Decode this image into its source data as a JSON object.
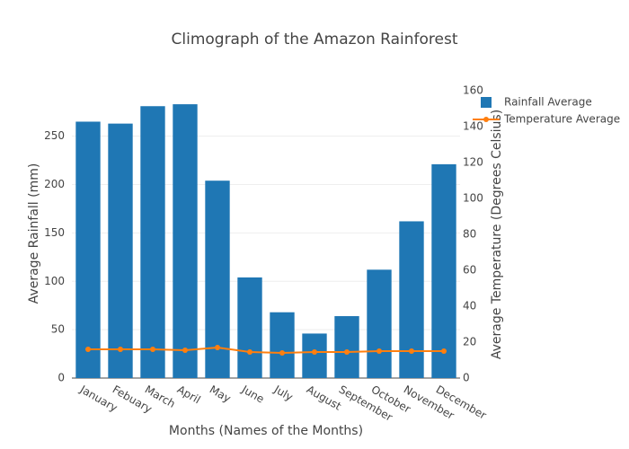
{
  "chart_data": {
    "type": "combo",
    "title": "Climograph of the Amazon Rainforest",
    "x_label": "Months (Names of the Months)",
    "y_label": "Average Rainfall (mm)",
    "y2_label": "Average Temperature (Degrees Celsius)",
    "categories": [
      "January",
      "Febuary",
      "March",
      "April",
      "May",
      "June",
      "July",
      "August",
      "September",
      "October",
      "November",
      "December"
    ],
    "series": [
      {
        "name": "Rainfall Average",
        "type": "bar",
        "color": "#1f77b4",
        "values": [
          265,
          263,
          281,
          283,
          204,
          104,
          68,
          46,
          64,
          112,
          162,
          221
        ]
      },
      {
        "name": "Temperature Average",
        "type": "line",
        "axis": "y2",
        "color": "#ff7f0e",
        "values": [
          16,
          16,
          16,
          15.5,
          17,
          14.5,
          14,
          14.5,
          14.5,
          15,
          15,
          15
        ]
      }
    ],
    "ylim": [
      0,
      297
    ],
    "yticks": [
      0,
      50,
      100,
      150,
      200,
      250
    ],
    "y2lim": [
      0,
      160
    ],
    "y2ticks": [
      0,
      20,
      40,
      60,
      80,
      100,
      120,
      140,
      160
    ],
    "grid": true,
    "legend": "top-right"
  }
}
